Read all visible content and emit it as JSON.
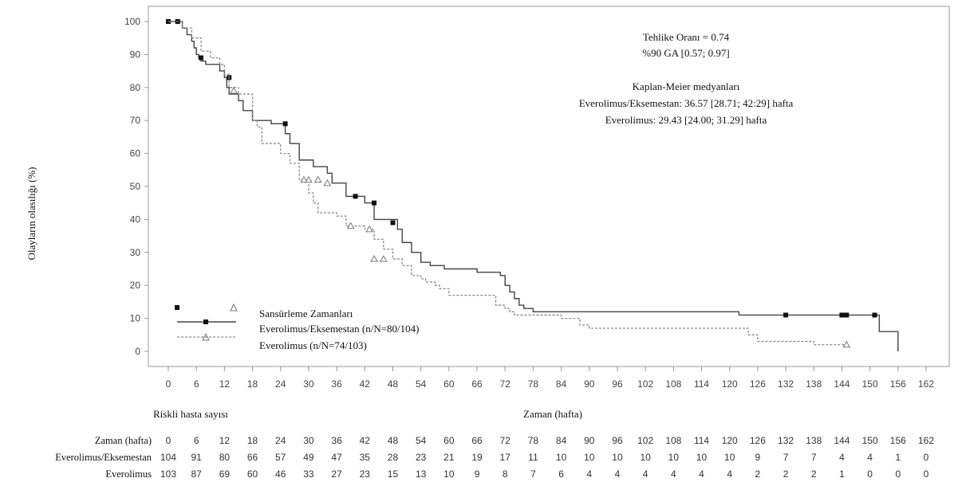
{
  "chart_data": {
    "type": "line",
    "subtype": "kaplan-meier",
    "ylabel": "Olayların olasılığı (%)",
    "xlabel": "Zaman (hafta)",
    "xlim": [
      -3,
      165
    ],
    "ylim": [
      -5,
      103
    ],
    "x_ticks": [
      0,
      6,
      12,
      18,
      24,
      30,
      36,
      42,
      48,
      54,
      60,
      66,
      72,
      78,
      84,
      90,
      96,
      102,
      108,
      114,
      120,
      126,
      132,
      138,
      144,
      150,
      156,
      162
    ],
    "y_ticks": [
      0,
      10,
      20,
      30,
      40,
      50,
      60,
      70,
      80,
      90,
      100
    ],
    "annotations": {
      "hazard_ratio": "Tehlike Oranı = 0.74",
      "ci": "%90 GA [0.57; 0.97]",
      "km_title": "Kaplan-Meier medyanları",
      "km_combo": "Everolimus/Eksemestan: 36.57 [28.71; 42:29] hafta",
      "km_mono": "Everolimus: 29.43 [24.00; 31.29] hafta"
    },
    "legend": {
      "censor": "Sansürleme Zamanları",
      "items": [
        "Everolimus/Eksemestan (n/N=80/104)",
        "Everolimus (n/N=74/103)"
      ]
    },
    "series": [
      {
        "name": "Everolimus/Eksemestan (n/N=80/104)",
        "style": "solid",
        "color": "#444444",
        "marker": "filled-square",
        "x": [
          0,
          3,
          4,
          5,
          5.5,
          6,
          6.5,
          7,
          8,
          11,
          12,
          12.5,
          13,
          15,
          16,
          18,
          22,
          25,
          26,
          28,
          31,
          34,
          35,
          38,
          42,
          44,
          49,
          50,
          52,
          54,
          56,
          59,
          62,
          66,
          71,
          72,
          73,
          74,
          75,
          76,
          78,
          122,
          144,
          150,
          152,
          156
        ],
        "y": [
          100,
          98,
          96,
          94,
          92,
          90,
          89,
          88,
          87,
          85,
          83,
          80,
          78,
          76,
          73,
          70,
          69,
          66,
          63,
          58,
          56,
          54,
          51,
          47,
          45,
          40,
          37,
          33,
          30,
          27,
          26,
          25,
          25,
          24,
          23,
          20,
          18,
          16,
          14,
          13,
          12,
          11,
          11,
          11,
          6,
          0
        ],
        "censor_x": [
          0,
          2,
          7,
          13,
          25,
          40,
          44,
          48,
          132,
          144,
          145,
          151
        ],
        "censor_y": [
          100,
          100,
          89,
          83,
          69,
          47,
          45,
          39,
          11,
          11,
          11,
          11
        ]
      },
      {
        "name": "Everolimus (n/N=74/103)",
        "style": "dashed",
        "color": "#8a8a8a",
        "marker": "open-triangle",
        "x": [
          0,
          3,
          5,
          7,
          9,
          11,
          12,
          13,
          15,
          18,
          19,
          20,
          24,
          26,
          28,
          30,
          31,
          32,
          36,
          38,
          42,
          44,
          46,
          48,
          50,
          52,
          54,
          55,
          57,
          58,
          60,
          70,
          72,
          73,
          74,
          78,
          84,
          88,
          90,
          106,
          108,
          124,
          126,
          132,
          138,
          142,
          145
        ],
        "y": [
          100,
          98,
          95,
          91,
          89,
          87,
          84,
          80,
          78,
          70,
          68,
          63,
          60,
          57,
          52,
          48,
          45,
          42,
          41,
          38,
          37,
          34,
          31,
          28,
          26,
          23,
          22,
          21,
          20,
          19,
          17,
          14,
          13,
          12,
          11,
          11,
          10,
          8,
          7,
          7,
          7,
          5,
          3,
          3,
          2,
          2,
          2
        ],
        "censor_x": [
          14,
          29,
          30,
          32,
          34,
          39,
          43,
          44,
          46,
          145
        ],
        "censor_y": [
          79,
          52,
          52,
          52,
          51,
          38,
          37,
          28,
          28,
          2
        ]
      }
    ],
    "risk_table": {
      "title": "Riskli hasta sayısı",
      "rows": [
        {
          "label": "Zaman (hafta)",
          "values": [
            "0",
            "6",
            "12",
            "18",
            "24",
            "30",
            "36",
            "42",
            "48",
            "54",
            "60",
            "66",
            "72",
            "78",
            "84",
            "90",
            "96",
            "102",
            "108",
            "114",
            "120",
            "126",
            "132",
            "138",
            "144",
            "150",
            "156",
            "162"
          ]
        },
        {
          "label": "Everolimus/Eksemestan",
          "values": [
            "104",
            "91",
            "80",
            "66",
            "57",
            "49",
            "47",
            "35",
            "28",
            "23",
            "21",
            "19",
            "17",
            "11",
            "10",
            "10",
            "10",
            "10",
            "10",
            "10",
            "10",
            "9",
            "7",
            "7",
            "4",
            "4",
            "1",
            "0"
          ]
        },
        {
          "label": "Everolimus",
          "values": [
            "103",
            "87",
            "69",
            "60",
            "46",
            "33",
            "27",
            "23",
            "15",
            "13",
            "10",
            "9",
            "8",
            "7",
            "6",
            "4",
            "4",
            "4",
            "4",
            "4",
            "4",
            "2",
            "2",
            "2",
            "1",
            "0",
            "0",
            "0"
          ]
        }
      ]
    }
  }
}
